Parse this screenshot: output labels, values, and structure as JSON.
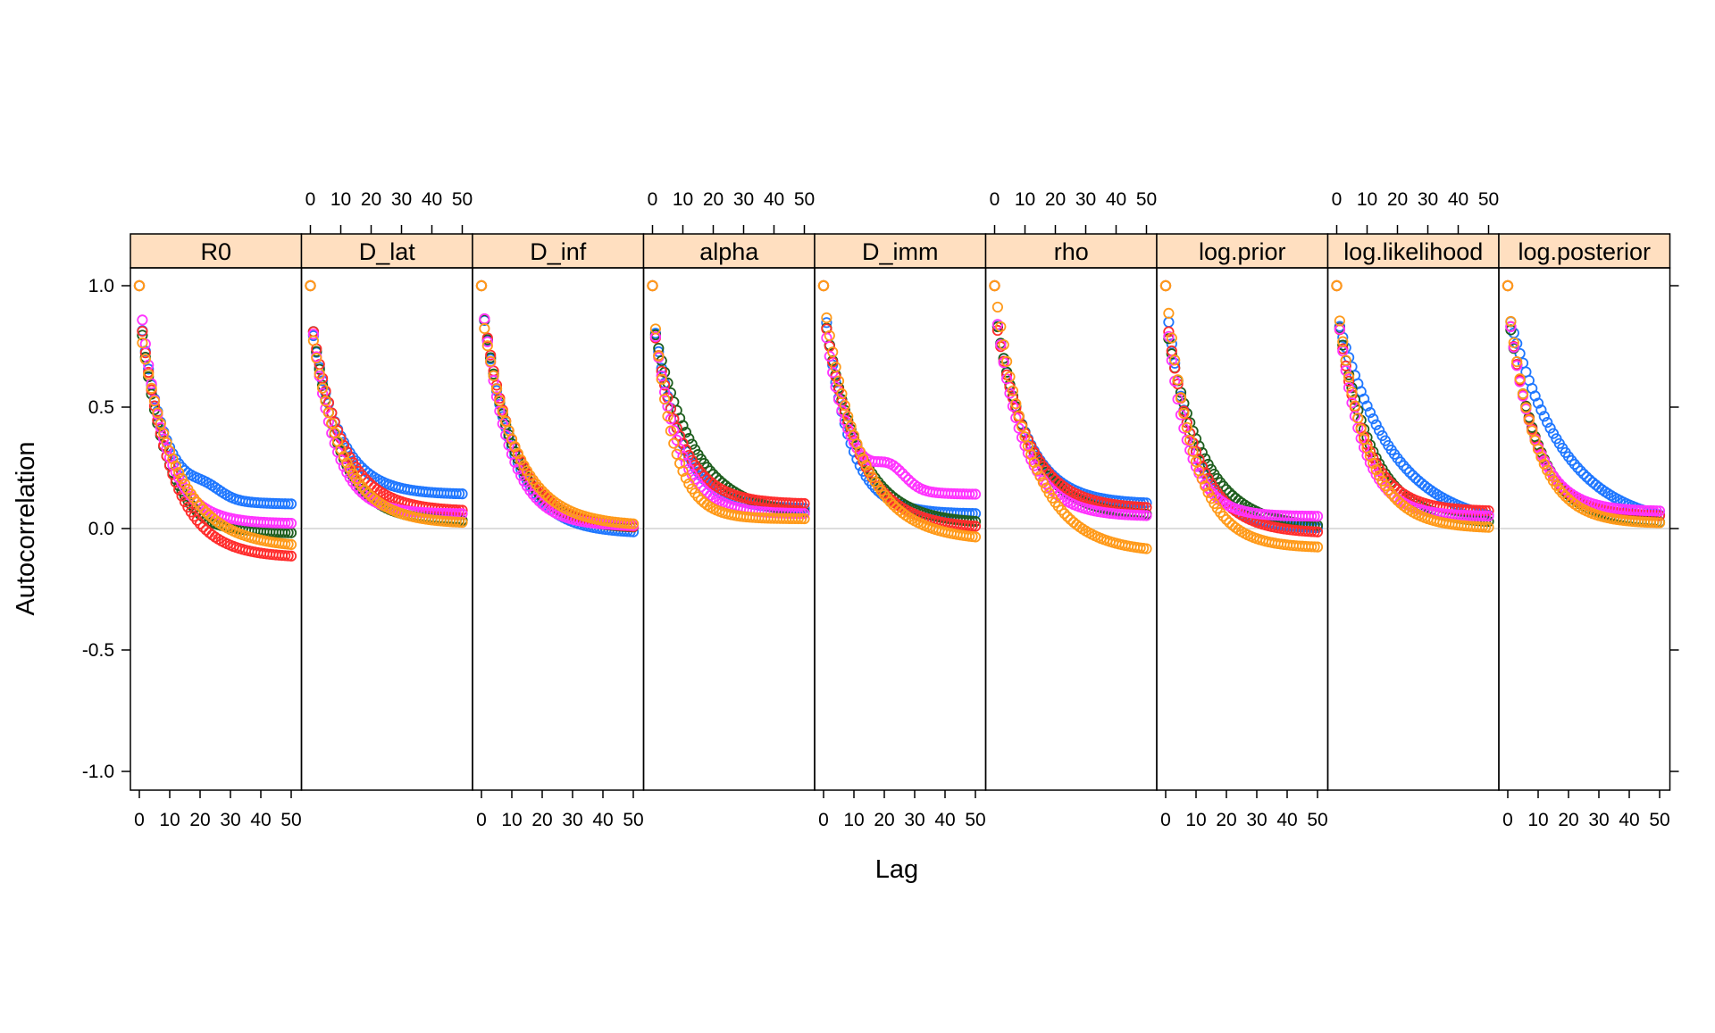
{
  "chart_data": {
    "type": "scatter",
    "xlabel": "Lag",
    "ylabel": "Autocorrelation",
    "xlim": [
      0,
      50
    ],
    "ylim": [
      -1.0,
      1.0
    ],
    "x_ticks": [
      "0",
      "10",
      "20",
      "30",
      "40",
      "50"
    ],
    "y_ticks": [
      "-1.0",
      "-0.5",
      "0.0",
      "0.5",
      "1.0"
    ],
    "panels": [
      {
        "label": "R0",
        "chains": [
          {
            "color": "#1f77ff",
            "a": 0.9,
            "b": 8.0,
            "c": 0.1,
            "d": 0.04
          },
          {
            "color": "#1e5e1e",
            "a": 0.9,
            "b": 8.5,
            "c": -0.02,
            "d": -0.01
          },
          {
            "color": "#ff2d2d",
            "a": 0.92,
            "b": 10.0,
            "c": -0.12,
            "d": 0.0
          },
          {
            "color": "#ff33ff",
            "a": 0.97,
            "b": 8.0,
            "c": 0.02,
            "d": 0.0
          },
          {
            "color": "#ff9a1a",
            "a": 0.85,
            "b": 12.0,
            "c": -0.08,
            "d": 0.0
          }
        ]
      },
      {
        "label": "D_lat",
        "chains": [
          {
            "color": "#1f77ff",
            "a": 0.85,
            "b": 9.0,
            "c": 0.14,
            "d": 0.0
          },
          {
            "color": "#1e5e1e",
            "a": 0.9,
            "b": 9.0,
            "c": 0.03,
            "d": 0.0
          },
          {
            "color": "#ff2d2d",
            "a": 0.88,
            "b": 10.0,
            "c": 0.07,
            "d": 0.0
          },
          {
            "color": "#ff33ff",
            "a": 0.9,
            "b": 7.5,
            "c": 0.06,
            "d": 0.0
          },
          {
            "color": "#ff9a1a",
            "a": 0.85,
            "b": 10.0,
            "c": 0.02,
            "d": 0.0
          }
        ]
      },
      {
        "label": "D_inf",
        "chains": [
          {
            "color": "#1f77ff",
            "a": 0.95,
            "b": 10.0,
            "c": -0.02,
            "d": 0.0
          },
          {
            "color": "#1e5e1e",
            "a": 0.95,
            "b": 10.0,
            "c": 0.0,
            "d": 0.0
          },
          {
            "color": "#ff2d2d",
            "a": 0.95,
            "b": 10.5,
            "c": 0.0,
            "d": 0.0
          },
          {
            "color": "#ff33ff",
            "a": 0.97,
            "b": 8.5,
            "c": 0.01,
            "d": 0.0
          },
          {
            "color": "#ff9a1a",
            "a": 0.9,
            "b": 11.0,
            "c": 0.01,
            "d": 0.0
          }
        ]
      },
      {
        "label": "alpha",
        "chains": [
          {
            "color": "#1f77ff",
            "a": 0.88,
            "b": 9.0,
            "c": 0.08,
            "d": 0.0
          },
          {
            "color": "#1e5e1e",
            "a": 0.85,
            "b": 13.0,
            "c": 0.05,
            "d": 0.0
          },
          {
            "color": "#ff2d2d",
            "a": 0.85,
            "b": 9.0,
            "c": 0.1,
            "d": 0.0
          },
          {
            "color": "#ff33ff",
            "a": 0.88,
            "b": 8.0,
            "c": 0.06,
            "d": 0.0
          },
          {
            "color": "#ff9a1a",
            "a": 0.95,
            "b": 6.5,
            "c": 0.04,
            "d": 0.0
          }
        ]
      },
      {
        "label": "D_imm",
        "chains": [
          {
            "color": "#1f77ff",
            "a": 0.95,
            "b": 8.0,
            "c": 0.06,
            "d": 0.0
          },
          {
            "color": "#1e5e1e",
            "a": 0.9,
            "b": 11.0,
            "c": 0.02,
            "d": 0.0
          },
          {
            "color": "#ff2d2d",
            "a": 0.9,
            "b": 11.0,
            "c": 0.0,
            "d": 0.0
          },
          {
            "color": "#ff33ff",
            "a": 0.85,
            "b": 8.0,
            "c": 0.14,
            "d": 0.08
          },
          {
            "color": "#ff9a1a",
            "a": 0.95,
            "b": 12.0,
            "c": -0.05,
            "d": 0.0
          }
        ]
      },
      {
        "label": "rho",
        "chains": [
          {
            "color": "#1f77ff",
            "a": 0.9,
            "b": 10.0,
            "c": 0.1,
            "d": 0.0
          },
          {
            "color": "#1e5e1e",
            "a": 0.9,
            "b": 11.0,
            "c": 0.05,
            "d": 0.0
          },
          {
            "color": "#ff2d2d",
            "a": 0.88,
            "b": 10.5,
            "c": 0.08,
            "d": 0.0
          },
          {
            "color": "#ff33ff",
            "a": 0.93,
            "b": 9.0,
            "c": 0.05,
            "d": 0.0
          },
          {
            "color": "#ff9a1a",
            "a": 1.0,
            "b": 12.0,
            "c": -0.1,
            "d": 0.0
          }
        ]
      },
      {
        "label": "log.prior",
        "chains": [
          {
            "color": "#1f77ff",
            "a": 0.95,
            "b": 9.0,
            "c": 0.0,
            "d": 0.0
          },
          {
            "color": "#1e5e1e",
            "a": 0.85,
            "b": 12.0,
            "c": 0.0,
            "d": 0.0
          },
          {
            "color": "#ff2d2d",
            "a": 0.9,
            "b": 10.0,
            "c": -0.02,
            "d": 0.0
          },
          {
            "color": "#ff33ff",
            "a": 0.9,
            "b": 7.0,
            "c": 0.05,
            "d": 0.0
          },
          {
            "color": "#ff9a1a",
            "a": 1.0,
            "b": 9.0,
            "c": -0.08,
            "d": 0.0
          }
        ]
      },
      {
        "label": "log.likelihood",
        "chains": [
          {
            "color": "#1f77ff",
            "a": 0.88,
            "b": 18.0,
            "c": 0.0,
            "d": 0.0
          },
          {
            "color": "#1e5e1e",
            "a": 0.9,
            "b": 11.0,
            "c": 0.02,
            "d": 0.0
          },
          {
            "color": "#ff2d2d",
            "a": 0.9,
            "b": 9.0,
            "c": 0.07,
            "d": 0.0
          },
          {
            "color": "#ff33ff",
            "a": 0.92,
            "b": 8.0,
            "c": 0.05,
            "d": 0.0
          },
          {
            "color": "#ff9a1a",
            "a": 0.95,
            "b": 9.5,
            "c": 0.0,
            "d": 0.0
          }
        ]
      },
      {
        "label": "log.posterior",
        "chains": [
          {
            "color": "#1f77ff",
            "a": 0.9,
            "b": 18.0,
            "c": 0.0,
            "d": 0.0
          },
          {
            "color": "#1e5e1e",
            "a": 0.9,
            "b": 10.0,
            "c": 0.02,
            "d": 0.0
          },
          {
            "color": "#ff2d2d",
            "a": 0.92,
            "b": 9.0,
            "c": 0.05,
            "d": 0.0
          },
          {
            "color": "#ff33ff",
            "a": 0.92,
            "b": 8.5,
            "c": 0.07,
            "d": 0.0
          },
          {
            "color": "#ff9a1a",
            "a": 0.95,
            "b": 9.0,
            "c": 0.02,
            "d": 0.0
          }
        ]
      }
    ],
    "strip_color": "#ffdfc0",
    "zero_line_color": "#dddddd",
    "grid": false,
    "legend": "none"
  }
}
